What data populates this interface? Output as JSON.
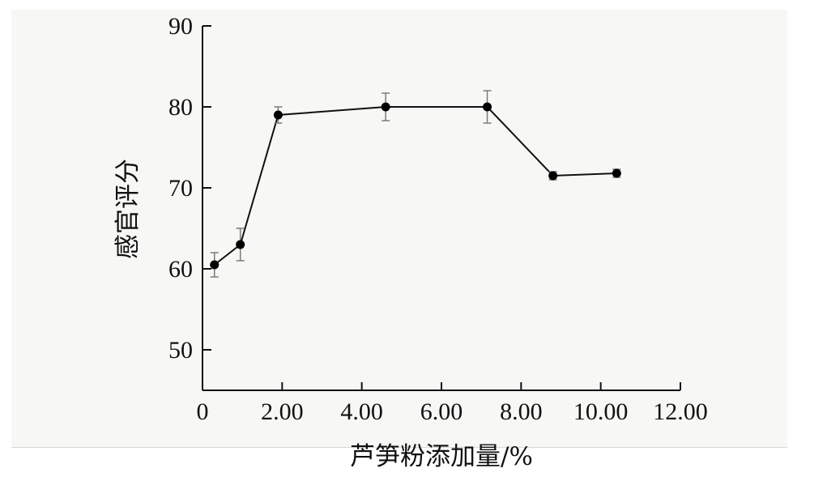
{
  "chart_data": {
    "type": "line",
    "title": "",
    "xlabel": "芦笋粉添加量/%",
    "ylabel": "感官评分",
    "xlim": [
      0,
      12
    ],
    "ylim": [
      45,
      90
    ],
    "x_ticks": [
      0,
      2,
      4,
      6,
      8,
      10,
      12
    ],
    "x_tick_labels": [
      "0",
      "2.00",
      "4.00",
      "6.00",
      "8.00",
      "10.00",
      "12.00"
    ],
    "y_ticks": [
      50,
      60,
      70,
      80,
      90
    ],
    "y_tick_labels": [
      "50",
      "60",
      "70",
      "80",
      "90"
    ],
    "grid": false,
    "legend": "none",
    "series": [
      {
        "x": [
          0.3,
          0.95,
          1.9,
          4.6,
          7.15,
          8.8,
          10.4
        ],
        "y": [
          60.5,
          63,
          79,
          80,
          80,
          71.5,
          71.8
        ],
        "error": [
          1.5,
          2.0,
          1.0,
          1.7,
          2.0,
          0.5,
          0.5
        ]
      }
    ],
    "colors": {
      "line": "#111111",
      "marker": "#000000",
      "errorbar": "#7a7a7a"
    }
  }
}
